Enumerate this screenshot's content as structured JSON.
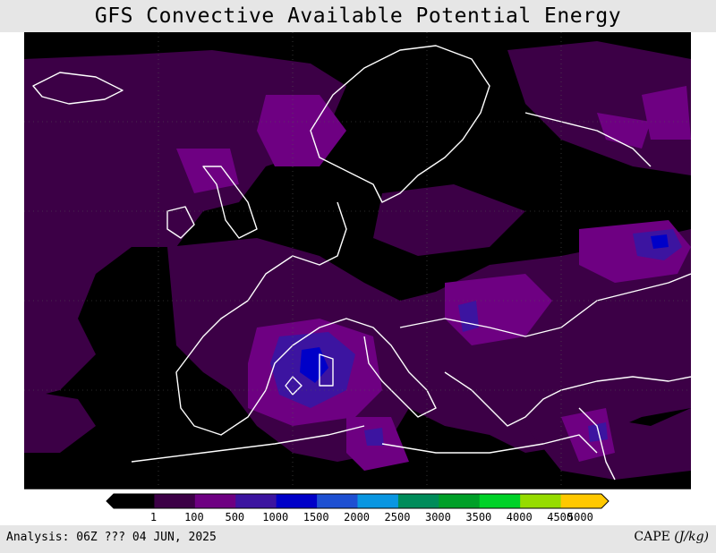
{
  "title": "GFS Convective Available Potential Energy",
  "footer": {
    "analysis": "Analysis: 06Z ??? 04 JUN, 2025",
    "units_prefix": "CAPE ",
    "units": "(J/kg)"
  },
  "legend": {
    "labels": [
      "1",
      "100",
      "500",
      "1000",
      "1500",
      "2000",
      "2500",
      "3000",
      "3500",
      "4000",
      "4500",
      "5000"
    ],
    "colors": [
      "#000000",
      "#3c0046",
      "#6e0082",
      "#3c14a0",
      "#0000c8",
      "#1e50d2",
      "#0a96e1",
      "#008c5a",
      "#00a028",
      "#00d228",
      "#96dc00",
      "#ffc800"
    ]
  },
  "colors": {
    "background_map": "#000000",
    "coastline": "#ffffff",
    "banner": "#e6e6e6"
  }
}
